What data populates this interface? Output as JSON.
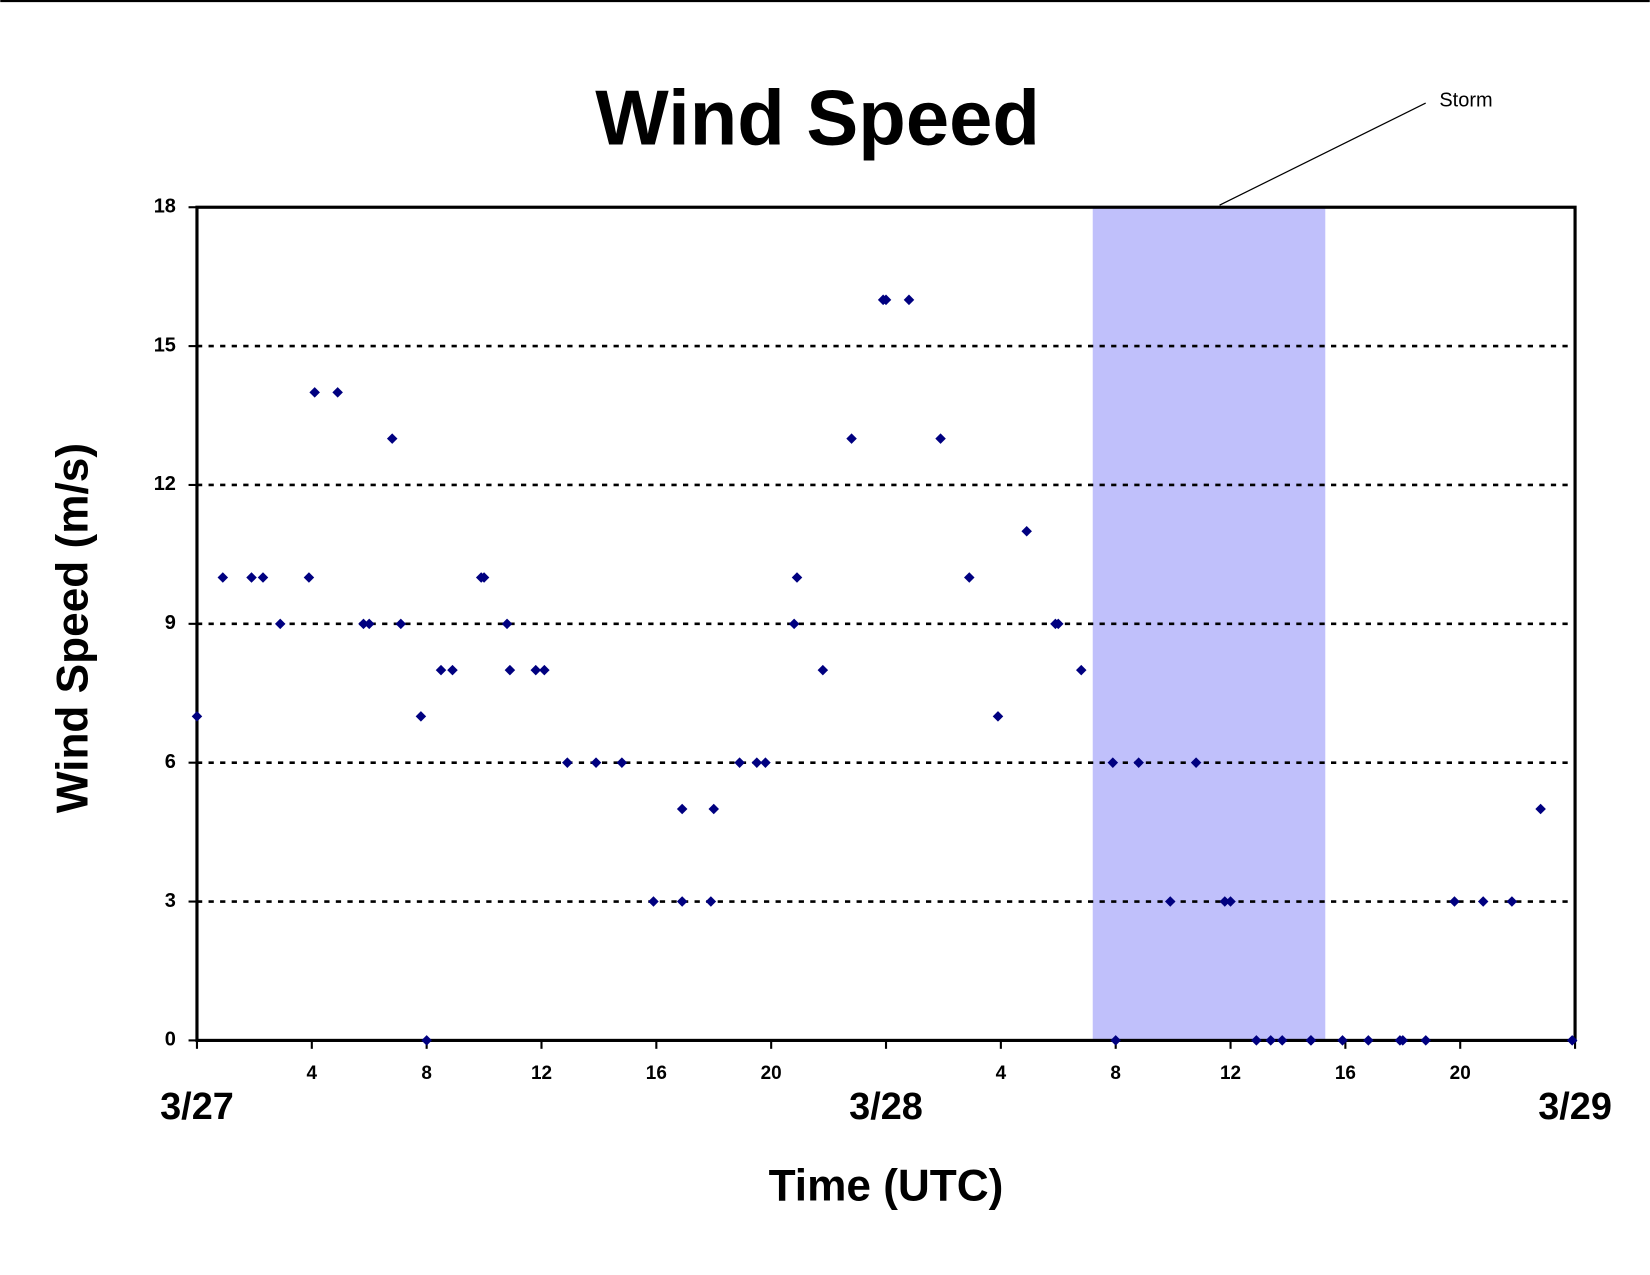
{
  "chart_data": {
    "type": "scatter",
    "title": "Wind Speed",
    "x_label": "Time (UTC)",
    "y_label": "Wind Speed (m/s)",
    "xlim": [
      0,
      48
    ],
    "ylim": [
      0,
      18
    ],
    "xticks": [
      4,
      8,
      12,
      16,
      20,
      {
        "value": 28,
        "label": "4"
      },
      {
        "value": 32,
        "label": "8"
      },
      {
        "value": 36,
        "label": "12"
      },
      {
        "value": 40,
        "label": "16"
      },
      {
        "value": 44,
        "label": "20"
      }
    ],
    "date_ticks": [
      {
        "value": 0,
        "label": "3/27"
      },
      {
        "value": 24,
        "label": "3/28"
      },
      {
        "value": 48,
        "label": "3/29"
      }
    ],
    "yticks": [
      0,
      3,
      6,
      9,
      12,
      15,
      18
    ],
    "grid": true,
    "shaded": {
      "label": "Storm",
      "x": [
        31.2,
        39.3
      ],
      "color": "#c0c0fb"
    },
    "series": [
      {
        "name": "Wind Speed",
        "color": "#000080",
        "x": [
          0,
          0.9,
          1.9,
          2.3,
          2.9,
          3.9,
          4.1,
          4.9,
          5.8,
          6.0,
          6.8,
          7.1,
          7.8,
          8.0,
          8.5,
          8.9,
          9.9,
          10.0,
          10.8,
          10.9,
          11.8,
          12.1,
          12.9,
          13.9,
          14.8,
          15.9,
          16.9,
          16.9,
          17.9,
          18.0,
          18.9,
          19.5,
          19.8,
          20.8,
          20.9,
          21.8,
          22.8,
          23.9,
          24.0,
          24.8,
          25.9,
          26.9,
          27.9,
          28.9,
          29.9,
          30.0,
          30.8,
          31.9,
          32.0,
          32.8,
          33.9,
          34.8,
          35.8,
          36.0,
          36.9,
          37.4,
          37.8,
          38.8,
          38.8,
          39.9,
          40.8,
          41.9,
          42.0,
          42.8,
          43.8,
          44.8,
          45.8,
          46.8,
          47.9
        ],
        "values": [
          7,
          10,
          10,
          10,
          9,
          10,
          14,
          14,
          9,
          9,
          13,
          9,
          7,
          0,
          8,
          8,
          10,
          10,
          9,
          8,
          8,
          8,
          6,
          6,
          6,
          3,
          5,
          3,
          3,
          5,
          6,
          6,
          6,
          9,
          10,
          8,
          13,
          16,
          16,
          16,
          13,
          10,
          7,
          11,
          9,
          9,
          8,
          6,
          0,
          6,
          3,
          6,
          3,
          3,
          0,
          0,
          0,
          0,
          0,
          0,
          0,
          0,
          0,
          0,
          3,
          3,
          3,
          5,
          0
        ]
      }
    ]
  }
}
